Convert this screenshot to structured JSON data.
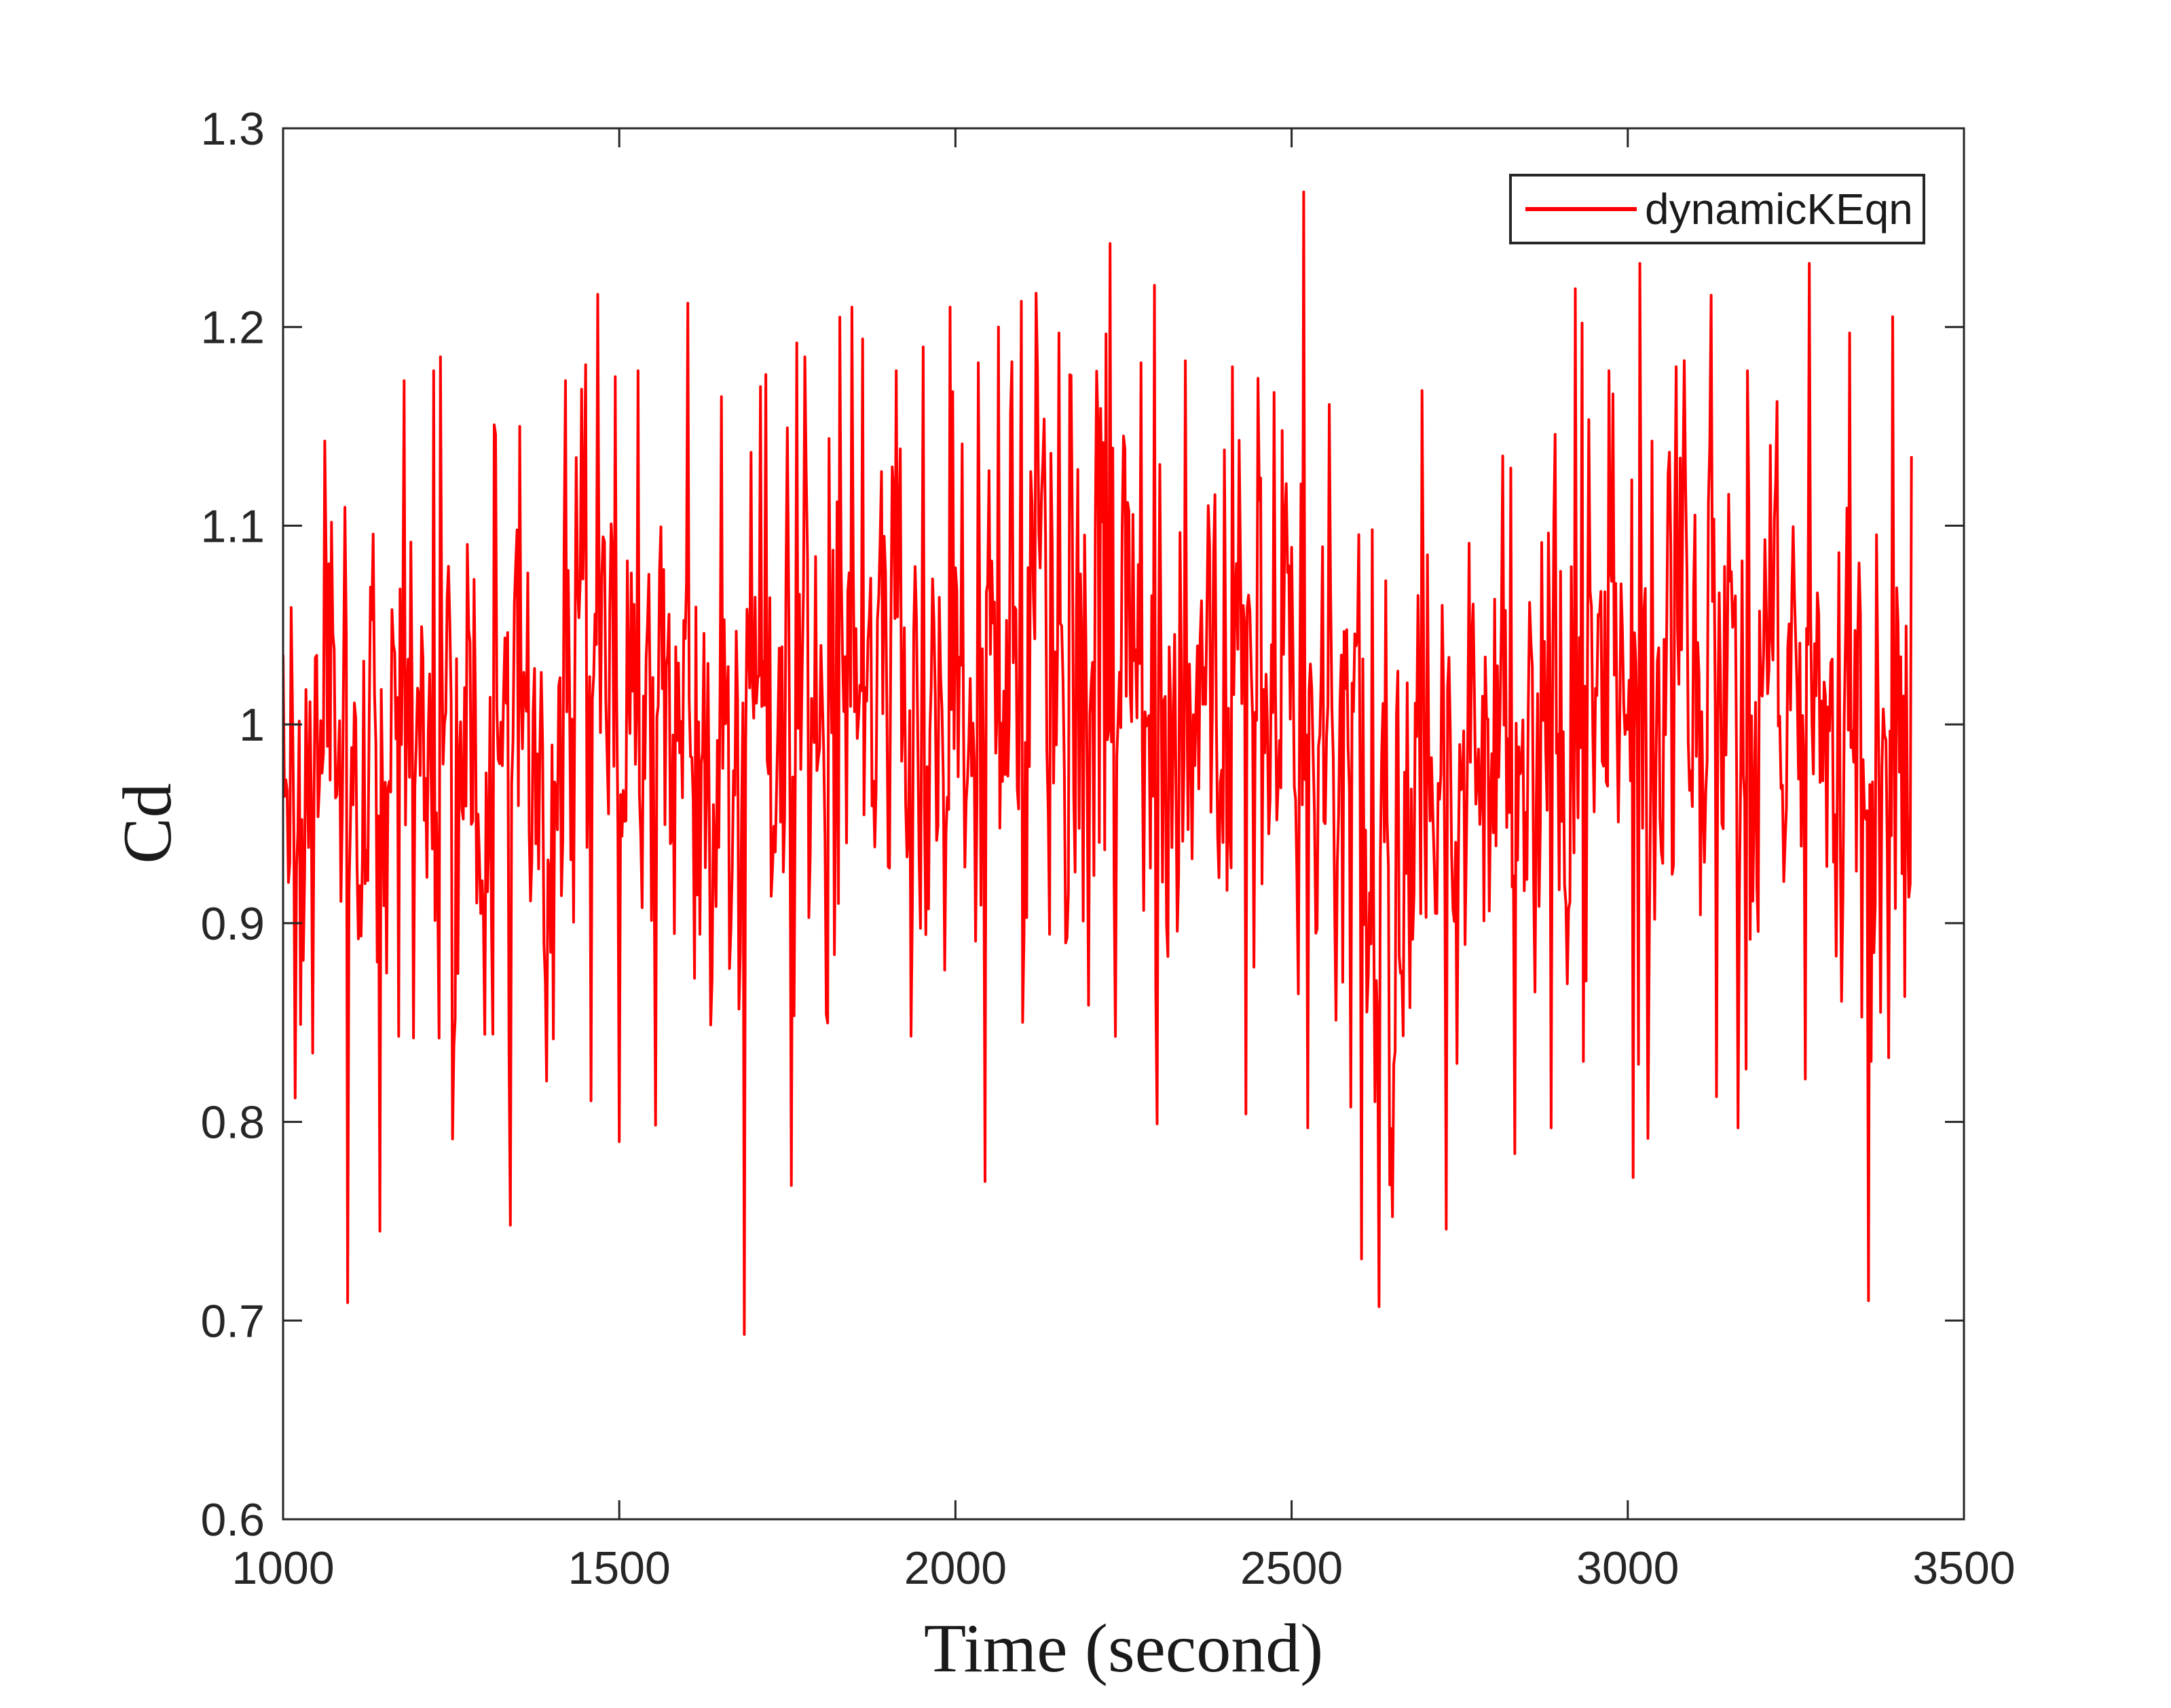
{
  "chart_data": {
    "type": "line",
    "title": "",
    "xlabel": "Time (second)",
    "ylabel": "Cd",
    "xlim": [
      1000,
      3500
    ],
    "ylim": [
      0.6,
      1.3
    ],
    "xticks": [
      1000,
      1500,
      2000,
      2500,
      3000,
      3500
    ],
    "xtick_labels": [
      "1000",
      "1500",
      "2000",
      "2500",
      "3000",
      "3500"
    ],
    "yticks": [
      0.6,
      0.7,
      0.8,
      0.9,
      1.0,
      1.1,
      1.2,
      1.3
    ],
    "ytick_labels": [
      "0.6",
      "0.7",
      "0.8",
      "0.9",
      "1",
      "1.1",
      "1.2",
      "1.3"
    ],
    "grid": false,
    "box": true,
    "tick_direction": "in",
    "axis_color": "#262626",
    "background": "#FFFFFF",
    "legend_position": "top-right",
    "series": [
      {
        "name": "dynamicKEqn",
        "color": "#FF0000",
        "x_start": 1000,
        "x_end": 3422,
        "n_points": 1212,
        "observed_min": 0.693,
        "observed_max": 1.268,
        "mean_level": 1.0,
        "noise_std": 0.068,
        "noise_ar": 0.28,
        "tail_prob": 0.03,
        "tail_mult": 1.55,
        "seed": 7,
        "baseline": [
          [
            1000,
            0.968
          ],
          [
            1120,
            0.975
          ],
          [
            1260,
            0.992
          ],
          [
            1420,
            0.992
          ],
          [
            1560,
            0.996
          ],
          [
            1700,
            1.002
          ],
          [
            1850,
            1.012
          ],
          [
            2000,
            1.022
          ],
          [
            2150,
            1.03
          ],
          [
            2300,
            1.024
          ],
          [
            2450,
            1.008
          ],
          [
            2600,
            0.966
          ],
          [
            2720,
            0.972
          ],
          [
            2840,
            0.992
          ],
          [
            2960,
            1.006
          ],
          [
            3100,
            1.012
          ],
          [
            3240,
            1.0
          ],
          [
            3360,
            0.978
          ],
          [
            3422,
            1.0
          ]
        ],
        "spikes_high": [
          [
            1000,
            1.035
          ],
          [
            1179,
            1.173
          ],
          [
            1225,
            1.178
          ],
          [
            1233,
            1.185
          ],
          [
            1316,
            1.146
          ],
          [
            1352,
            1.15
          ],
          [
            1420,
            1.173
          ],
          [
            1449,
            1.181
          ],
          [
            1493,
            1.175
          ],
          [
            1528,
            1.178
          ],
          [
            1602,
            1.212
          ],
          [
            1652,
            1.165
          ],
          [
            1710,
            1.17
          ],
          [
            1763,
            1.192
          ],
          [
            1776,
            1.185
          ],
          [
            1828,
            1.205
          ],
          [
            1846,
            1.21
          ],
          [
            1862,
            1.194
          ],
          [
            1912,
            1.178
          ],
          [
            1952,
            1.19
          ],
          [
            1992,
            1.21
          ],
          [
            2033,
            1.182
          ],
          [
            2063,
            1.2
          ],
          [
            2098,
            1.213
          ],
          [
            2119,
            1.217
          ],
          [
            2154,
            1.197
          ],
          [
            2230,
            1.242
          ],
          [
            2275,
            1.182
          ],
          [
            2295,
            1.221
          ],
          [
            2341,
            1.183
          ],
          [
            2411,
            1.18
          ],
          [
            2517,
            1.268
          ],
          [
            2556,
            1.161
          ],
          [
            2694,
            1.168
          ],
          [
            2825,
            1.129
          ],
          [
            2891,
            1.146
          ],
          [
            2931,
            1.202
          ],
          [
            2971,
            1.178
          ],
          [
            3017,
            1.232
          ],
          [
            3072,
            1.18
          ],
          [
            3123,
            1.216
          ],
          [
            3178,
            1.178
          ],
          [
            3269,
            1.232
          ],
          [
            3330,
            1.197
          ],
          [
            3421,
            1.135
          ]
        ],
        "spikes_low": [
          [
            1018,
            0.812
          ],
          [
            1095,
            0.709
          ],
          [
            1144,
            0.745
          ],
          [
            1338,
            0.748
          ],
          [
            1500,
            0.79
          ],
          [
            1685,
            0.693
          ],
          [
            1755,
            0.768
          ],
          [
            2043,
            0.77
          ],
          [
            2299,
            0.799
          ],
          [
            2432,
            0.804
          ],
          [
            2523,
            0.797
          ],
          [
            2603,
            0.731
          ],
          [
            2629,
            0.707
          ],
          [
            2730,
            0.746
          ],
          [
            2831,
            0.784
          ],
          [
            2886,
            0.797
          ],
          [
            3008,
            0.772
          ],
          [
            3164,
            0.797
          ],
          [
            3358,
            0.71
          ]
        ]
      }
    ]
  },
  "legend": {
    "entries": [
      {
        "label": "dynamicKEqn",
        "color": "#FF0000"
      }
    ]
  }
}
